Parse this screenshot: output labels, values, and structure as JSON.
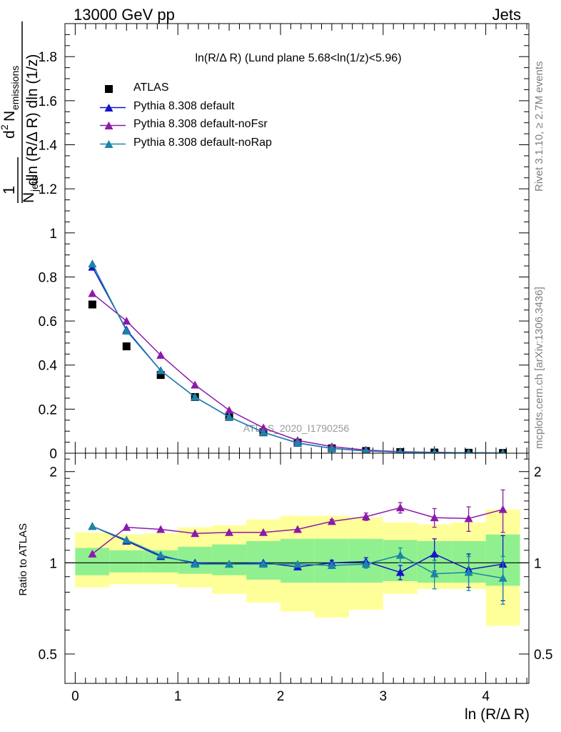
{
  "header": {
    "left": "13000 GeV pp",
    "right": "Jets"
  },
  "plot_title": "ln(R/Δ R) (Lund plane 5.68<ln(1/z)<5.96)",
  "watermark": "ATLAS_2020_I1790256",
  "side_texts": {
    "rivet": "Rivet 3.1.10, ≥ 2.7M events",
    "mcplots": "mcplots.cern.ch [arXiv:1306.3436]"
  },
  "colors": {
    "ATLAS": "#000000",
    "default": "#1515c8",
    "noFsr": "#8b1aab",
    "noRap": "#1b85a6",
    "band_inner": "#90f090",
    "band_outer": "#ffff99"
  },
  "chart_data": [
    {
      "type": "line",
      "panel": "main",
      "ylabel_parts": {
        "frac_num": "1",
        "frac_den_N": "N",
        "frac_den_sub": "jets",
        "d2": "d",
        "d2_sup": "2",
        "N": "N",
        "N_sub": "emissions",
        "denominator": "dln (R/Δ R) dln (1/z)"
      },
      "xlim": [
        -0.1,
        4.42
      ],
      "ylim": [
        0,
        1.95
      ],
      "yticks": [
        0,
        0.2,
        0.4,
        0.6,
        0.8,
        1,
        1.2,
        1.4,
        1.6,
        1.8
      ],
      "ytick_labels": [
        "0",
        "0.2",
        "0.4",
        "0.6",
        "0.8",
        "1",
        "1.2",
        "1.4",
        "1.6",
        "1.8"
      ],
      "x": [
        0.167,
        0.5,
        0.833,
        1.167,
        1.5,
        1.833,
        2.167,
        2.5,
        2.833,
        3.167,
        3.5,
        3.833,
        4.167
      ],
      "series": [
        {
          "name": "ATLAS",
          "marker": "square",
          "values": [
            0.675,
            0.485,
            0.355,
            0.255,
            0.165,
            0.095,
            0.048,
            0.022,
            0.01,
            0.005,
            0.003,
            0.002,
            0.001
          ]
        },
        {
          "name": "Pythia 8.308 default",
          "marker": "triangle",
          "values": [
            0.845,
            0.56,
            0.375,
            0.255,
            0.165,
            0.095,
            0.046,
            0.022,
            0.01,
            0.005,
            0.003,
            0.002,
            0.001
          ]
        },
        {
          "name": "Pythia 8.308 default-noFsr",
          "marker": "triangle",
          "values": [
            0.725,
            0.6,
            0.445,
            0.31,
            0.195,
            0.115,
            0.058,
            0.03,
            0.014,
            0.007,
            0.004,
            0.002,
            0.001
          ]
        },
        {
          "name": "Pythia 8.308 default-noRap",
          "marker": "triangle",
          "values": [
            0.86,
            0.555,
            0.375,
            0.255,
            0.165,
            0.095,
            0.047,
            0.022,
            0.01,
            0.005,
            0.003,
            0.002,
            0.001
          ]
        }
      ]
    },
    {
      "type": "line",
      "panel": "ratio",
      "ylabel": "Ratio to ATLAS",
      "ylog": true,
      "ylim": [
        0.4,
        2.3
      ],
      "yticks": [
        0.5,
        1,
        2
      ],
      "ytick_labels": [
        "0.5",
        "1",
        "2"
      ],
      "xlabel": "ln (R/Δ R)",
      "xlim": [
        -0.1,
        4.42
      ],
      "xticks": [
        0,
        1,
        2,
        3,
        4
      ],
      "xtick_labels": [
        "0",
        "1",
        "2",
        "3",
        "4"
      ],
      "bins": [
        [
          0,
          0.333
        ],
        [
          0.333,
          0.667
        ],
        [
          0.667,
          1.0
        ],
        [
          1.0,
          1.333
        ],
        [
          1.333,
          1.667
        ],
        [
          1.667,
          2.0
        ],
        [
          2.0,
          2.333
        ],
        [
          2.333,
          2.667
        ],
        [
          2.667,
          3.0
        ],
        [
          3.0,
          3.333
        ],
        [
          3.333,
          3.667
        ],
        [
          3.667,
          4.0
        ],
        [
          4.0,
          4.333
        ]
      ],
      "band_inner": [
        [
          0.91,
          1.12
        ],
        [
          0.93,
          1.1
        ],
        [
          0.93,
          1.1
        ],
        [
          0.92,
          1.13
        ],
        [
          0.91,
          1.15
        ],
        [
          0.88,
          1.18
        ],
        [
          0.86,
          1.2
        ],
        [
          0.86,
          1.2
        ],
        [
          0.86,
          1.2
        ],
        [
          0.87,
          1.19
        ],
        [
          0.86,
          1.18
        ],
        [
          0.86,
          1.18
        ],
        [
          0.84,
          1.24
        ]
      ],
      "band_outer": [
        [
          0.83,
          1.26
        ],
        [
          0.85,
          1.24
        ],
        [
          0.85,
          1.25
        ],
        [
          0.83,
          1.31
        ],
        [
          0.79,
          1.33
        ],
        [
          0.74,
          1.39
        ],
        [
          0.69,
          1.43
        ],
        [
          0.66,
          1.43
        ],
        [
          0.7,
          1.41
        ],
        [
          0.79,
          1.36
        ],
        [
          0.82,
          1.34
        ],
        [
          0.82,
          1.36
        ],
        [
          0.62,
          1.5
        ]
      ],
      "x": [
        0.167,
        0.5,
        0.833,
        1.167,
        1.5,
        1.833,
        2.167,
        2.5,
        2.833,
        3.167,
        3.5,
        3.833,
        4.167
      ],
      "series": [
        {
          "name": "Pythia 8.308 default",
          "values": [
            1.32,
            1.18,
            1.05,
            1.0,
            0.99,
            1.0,
            0.97,
            1.0,
            1.01,
            0.93,
            1.07,
            0.95,
            0.99
          ],
          "errors": [
            0.01,
            0.01,
            0.01,
            0.01,
            0.01,
            0.01,
            0.01,
            0.02,
            0.03,
            0.05,
            0.13,
            0.12,
            0.24
          ]
        },
        {
          "name": "Pythia 8.308 default-noFsr",
          "values": [
            1.07,
            1.31,
            1.29,
            1.25,
            1.26,
            1.26,
            1.29,
            1.37,
            1.42,
            1.52,
            1.41,
            1.4,
            1.5
          ],
          "errors": [
            0.01,
            0.01,
            0.01,
            0.01,
            0.01,
            0.01,
            0.01,
            0.02,
            0.04,
            0.06,
            0.1,
            0.13,
            0.24
          ]
        },
        {
          "name": "Pythia 8.308 default-noRap",
          "values": [
            1.32,
            1.19,
            1.06,
            0.99,
            0.99,
            0.99,
            0.99,
            0.98,
            0.99,
            1.06,
            0.92,
            0.93,
            0.89
          ],
          "errors": [
            0.01,
            0.01,
            0.01,
            0.01,
            0.01,
            0.01,
            0.01,
            0.02,
            0.03,
            0.06,
            0.1,
            0.12,
            0.16
          ]
        }
      ]
    }
  ]
}
